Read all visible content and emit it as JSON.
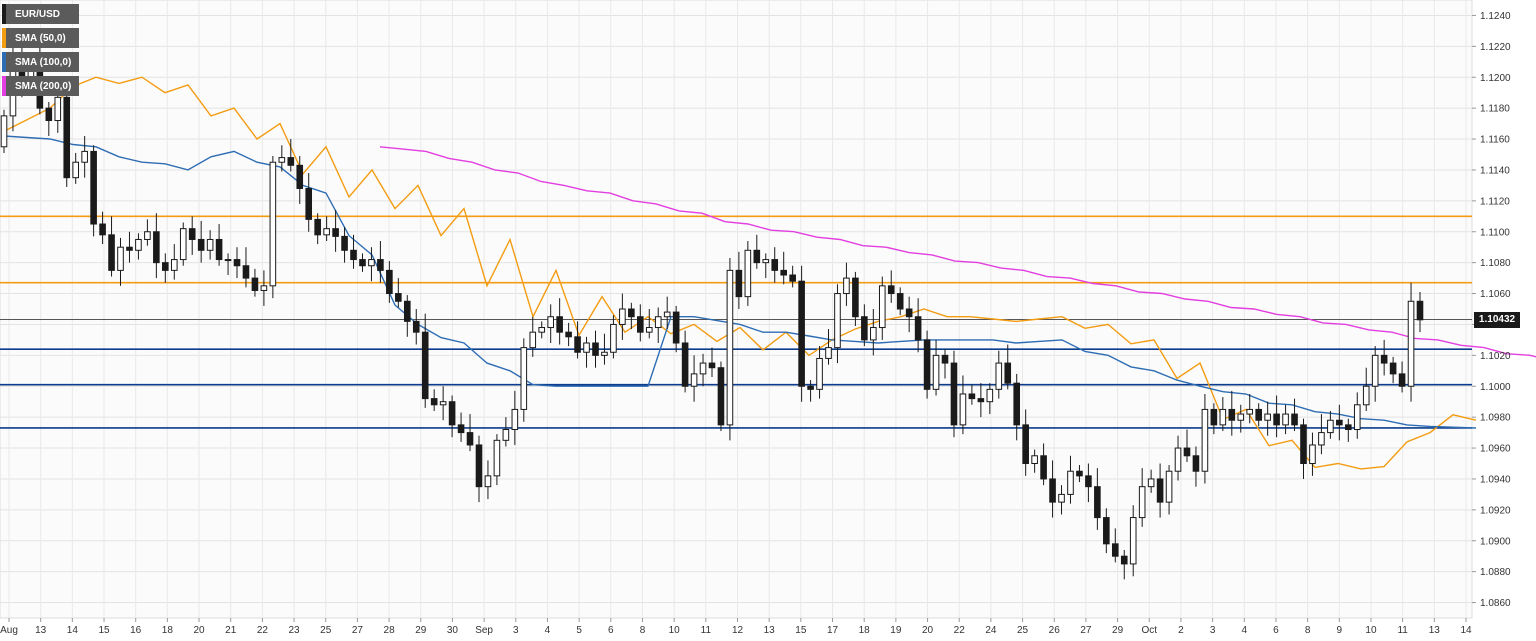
{
  "chart_data": {
    "type": "candlestick",
    "symbol": "EUR/USD",
    "y_axis": {
      "range": [
        1.085,
        1.125
      ],
      "ticks": [
        "1.0860",
        "1.0880",
        "1.0900",
        "1.0920",
        "1.0940",
        "1.0960",
        "1.0980",
        "1.1000",
        "1.1020",
        "1.1040",
        "1.1060",
        "1.1080",
        "1.1100",
        "1.1120",
        "1.1140",
        "1.1160",
        "1.1180",
        "1.1200",
        "1.1220",
        "1.1240"
      ]
    },
    "x_axis": {
      "tick_labels": [
        "Aug",
        "13",
        "14",
        "15",
        "16",
        "18",
        "20",
        "21",
        "22",
        "23",
        "25",
        "27",
        "28",
        "29",
        "30",
        "Sep",
        "3",
        "4",
        "5",
        "6",
        "8",
        "10",
        "11",
        "12",
        "13",
        "15",
        "17",
        "18",
        "19",
        "20",
        "22",
        "24",
        "25",
        "26",
        "27",
        "29",
        "Oct",
        "2",
        "3",
        "4",
        "6",
        "8",
        "9",
        "10",
        "11",
        "13",
        "14"
      ]
    },
    "grid": true,
    "legend": [
      {
        "label": "EUR/USD",
        "color": "#1a1a1a"
      },
      {
        "label": "SMA (50,0)",
        "color": "#f39c12"
      },
      {
        "label": "SMA (100,0)",
        "color": "#2e6db4"
      },
      {
        "label": "SMA (200,0)",
        "color": "#e23ee0"
      }
    ],
    "last_price": "1.10432",
    "last_price_value": 1.10432,
    "horizontal_levels": [
      {
        "value": 1.111,
        "color": "#f39c12"
      },
      {
        "value": 1.1067,
        "color": "#f39c12"
      },
      {
        "value": 1.1024,
        "color": "#0d3c8c"
      },
      {
        "value": 1.1001,
        "color": "#0d3c8c"
      },
      {
        "value": 1.0973,
        "color": "#0d3c8c"
      }
    ],
    "closes": [
      1.1175,
      1.1215,
      1.1195,
      1.121,
      1.118,
      1.1172,
      1.1187,
      1.1135,
      1.1145,
      1.1152,
      1.1105,
      1.1098,
      1.1075,
      1.109,
      1.1088,
      1.1095,
      1.11,
      1.108,
      1.1075,
      1.1082,
      1.1102,
      1.1095,
      1.1088,
      1.1095,
      1.1082,
      1.1082,
      1.1078,
      1.107,
      1.1062,
      1.1065,
      1.1145,
      1.1148,
      1.1143,
      1.1128,
      1.1108,
      1.1098,
      1.1102,
      1.1097,
      1.1088,
      1.1082,
      1.1078,
      1.1082,
      1.1075,
      1.106,
      1.1055,
      1.1042,
      1.1035,
      1.0992,
      1.0988,
      1.099,
      1.0975,
      1.097,
      1.0962,
      1.0935,
      1.0942,
      1.0965,
      1.0972,
      1.0985,
      1.1025,
      1.1035,
      1.1038,
      1.1045,
      1.1035,
      1.1032,
      1.1022,
      1.1028,
      1.102,
      1.1022,
      1.104,
      1.105,
      1.1045,
      1.1035,
      1.1038,
      1.1045,
      1.1048,
      1.1028,
      1.1,
      1.1008,
      1.1015,
      1.1012,
      1.0975,
      1.1075,
      1.1058,
      1.1088,
      1.108,
      1.1082,
      1.1075,
      1.1072,
      1.1068,
      1.1,
      1.0998,
      1.1018,
      1.1025,
      1.106,
      1.107,
      1.1045,
      1.103,
      1.1038,
      1.1065,
      1.106,
      1.105,
      1.1045,
      1.103,
      1.0998,
      1.102,
      1.1015,
      1.0975,
      1.0995,
      1.0992,
      1.099,
      1.0998,
      1.1015,
      1.1002,
      1.0975,
      1.095,
      1.0955,
      1.094,
      1.0925,
      1.093,
      1.0945,
      1.0942,
      1.0935,
      1.0915,
      1.0898,
      1.089,
      1.0885,
      1.0915,
      1.0935,
      1.094,
      1.0925,
      1.0945,
      1.096,
      1.0955,
      1.0945,
      1.0985,
      1.0975,
      1.0985,
      1.0978,
      1.0982,
      1.0985,
      1.0978,
      1.0982,
      1.0975,
      1.0982,
      1.0975,
      1.095,
      1.0962,
      1.097,
      1.0978,
      1.0975,
      1.0972,
      1.0988,
      1.1,
      1.102,
      1.1015,
      1.1008,
      1.1,
      1.1055,
      1.1043
    ],
    "sma50": [
      [
        1.1165,
        1.118
      ],
      [
        1.1188,
        1.12
      ],
      [
        1.1192,
        1.12
      ],
      [
        1.1185,
        1.1195
      ],
      [
        1.117,
        1.118
      ],
      [
        1.115,
        1.117
      ],
      [
        1.112,
        1.1155
      ],
      [
        1.1105,
        1.114
      ],
      [
        1.11,
        1.113
      ],
      [
        1.108,
        1.1115
      ],
      [
        1.1035,
        1.1095
      ],
      [
        1.1015,
        1.1075
      ],
      [
        1.1008,
        1.1058
      ],
      [
        1.1025,
        1.1045
      ],
      [
        1.1028,
        1.104
      ],
      [
        1.102,
        1.1038
      ],
      [
        1.1012,
        1.1035
      ],
      [
        1.101,
        1.103
      ],
      [
        1.1032,
        1.1042
      ],
      [
        1.104,
        1.105
      ],
      [
        1.1045,
        1.1045
      ],
      [
        1.1045,
        1.1042
      ],
      [
        1.1042,
        1.1045
      ],
      [
        1.1035,
        1.104
      ],
      [
        1.1025,
        1.103
      ],
      [
        1.0995,
        1.1015
      ],
      [
        1.0972,
        1.0985
      ],
      [
        1.0958,
        1.0965
      ],
      [
        1.0945,
        1.095
      ],
      [
        1.0945,
        1.0948
      ],
      [
        1.0958,
        1.097
      ],
      [
        1.0985,
        1.0978
      ]
    ],
    "sma100": [
      [
        1.1162,
        1.116
      ],
      [
        1.1158,
        1.1155
      ],
      [
        1.1152,
        1.1145
      ],
      [
        1.1148,
        1.114
      ],
      [
        1.1145,
        1.1152
      ],
      [
        1.1148,
        1.1142
      ],
      [
        1.1135,
        1.1125
      ],
      [
        1.111,
        1.1085
      ],
      [
        1.1065,
        1.104
      ],
      [
        1.1035,
        1.1028
      ],
      [
        1.102,
        1.101
      ],
      [
        1.1002,
        1.1
      ],
      [
        1.1,
        1.1
      ],
      [
        1.1,
        1.1
      ],
      [
        1.1045,
        1.1045
      ],
      [
        1.1045,
        1.104
      ],
      [
        1.1035,
        1.1035
      ],
      [
        1.1035,
        1.103
      ],
      [
        1.103,
        1.1028
      ],
      [
        1.1028,
        1.103
      ],
      [
        1.103,
        1.103
      ],
      [
        1.1032,
        1.1028
      ],
      [
        1.1028,
        1.103
      ],
      [
        1.1025,
        1.102
      ],
      [
        1.1015,
        1.101
      ],
      [
        1.1008,
        1.1
      ],
      [
        1.0998,
        1.0995
      ],
      [
        1.099,
        1.0988
      ],
      [
        1.0985,
        1.0982
      ],
      [
        1.098,
        1.0978
      ],
      [
        1.0976,
        1.0974
      ],
      [
        1.0974,
        1.0973
      ]
    ],
    "sma200": [
      [
        1.1155,
        1.1152
      ],
      [
        1.115,
        1.1145
      ],
      [
        1.1142,
        1.1138
      ],
      [
        1.1135,
        1.113
      ],
      [
        1.1128,
        1.1125
      ],
      [
        1.1122,
        1.1118
      ],
      [
        1.1115,
        1.1112
      ],
      [
        1.1108,
        1.1105
      ],
      [
        1.1102,
        1.11
      ],
      [
        1.1098,
        1.1095
      ],
      [
        1.1092,
        1.109
      ],
      [
        1.1088,
        1.1085
      ],
      [
        1.1082,
        1.108
      ],
      [
        1.1078,
        1.1075
      ],
      [
        1.1072,
        1.107
      ],
      [
        1.1068,
        1.1065
      ],
      [
        1.1062,
        1.106
      ],
      [
        1.1058,
        1.1055
      ],
      [
        1.1052,
        1.105
      ],
      [
        1.1048,
        1.1045
      ],
      [
        1.1042,
        1.104
      ],
      [
        1.1038,
        1.1035
      ],
      [
        1.1032,
        1.103
      ],
      [
        1.1028,
        1.1025
      ],
      [
        1.1022,
        1.102
      ],
      [
        1.1018,
        1.1015
      ],
      [
        1.1012,
        1.101
      ],
      [
        1.1008,
        1.1005
      ],
      [
        1.1002,
        1.1001
      ]
    ]
  }
}
